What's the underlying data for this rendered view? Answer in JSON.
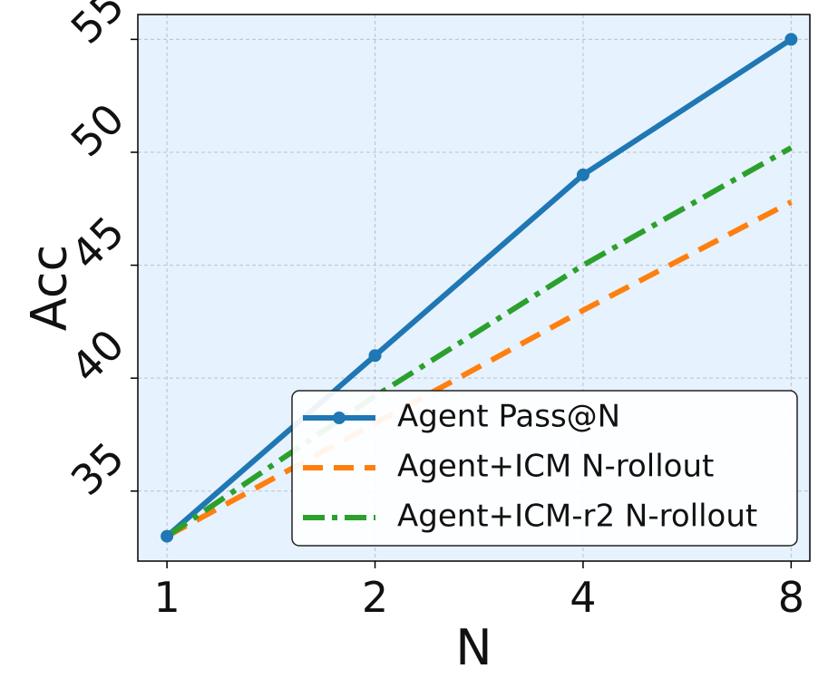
{
  "chart_data": {
    "type": "line",
    "x": [
      1,
      2,
      4,
      8
    ],
    "xticks": [
      "1",
      "2",
      "4",
      "8"
    ],
    "xlabel": "N",
    "ylabel": "Acc",
    "yticks": [
      "35",
      "40",
      "45",
      "50",
      "55"
    ],
    "ylim": [
      31.9,
      56.1
    ],
    "xscale": "log2",
    "grid": true,
    "legend_position": "lower-right",
    "background_color": "#e6f2fd",
    "series": [
      {
        "name": "Agent Pass@N",
        "values": [
          33.0,
          41.0,
          49.0,
          55.0
        ],
        "color": "#1f77b4",
        "style": "solid",
        "marker": "circle"
      },
      {
        "name": "Agent+ICM N-rollout",
        "values": [
          33.0,
          38.0,
          43.0,
          47.8
        ],
        "color": "#ff7f0e",
        "style": "dashed",
        "marker": "none"
      },
      {
        "name": "Agent+ICM-r2 N-rollout",
        "values": [
          33.0,
          39.2,
          45.0,
          50.2
        ],
        "color": "#2ca02c",
        "style": "dashdot",
        "marker": "none"
      }
    ]
  }
}
